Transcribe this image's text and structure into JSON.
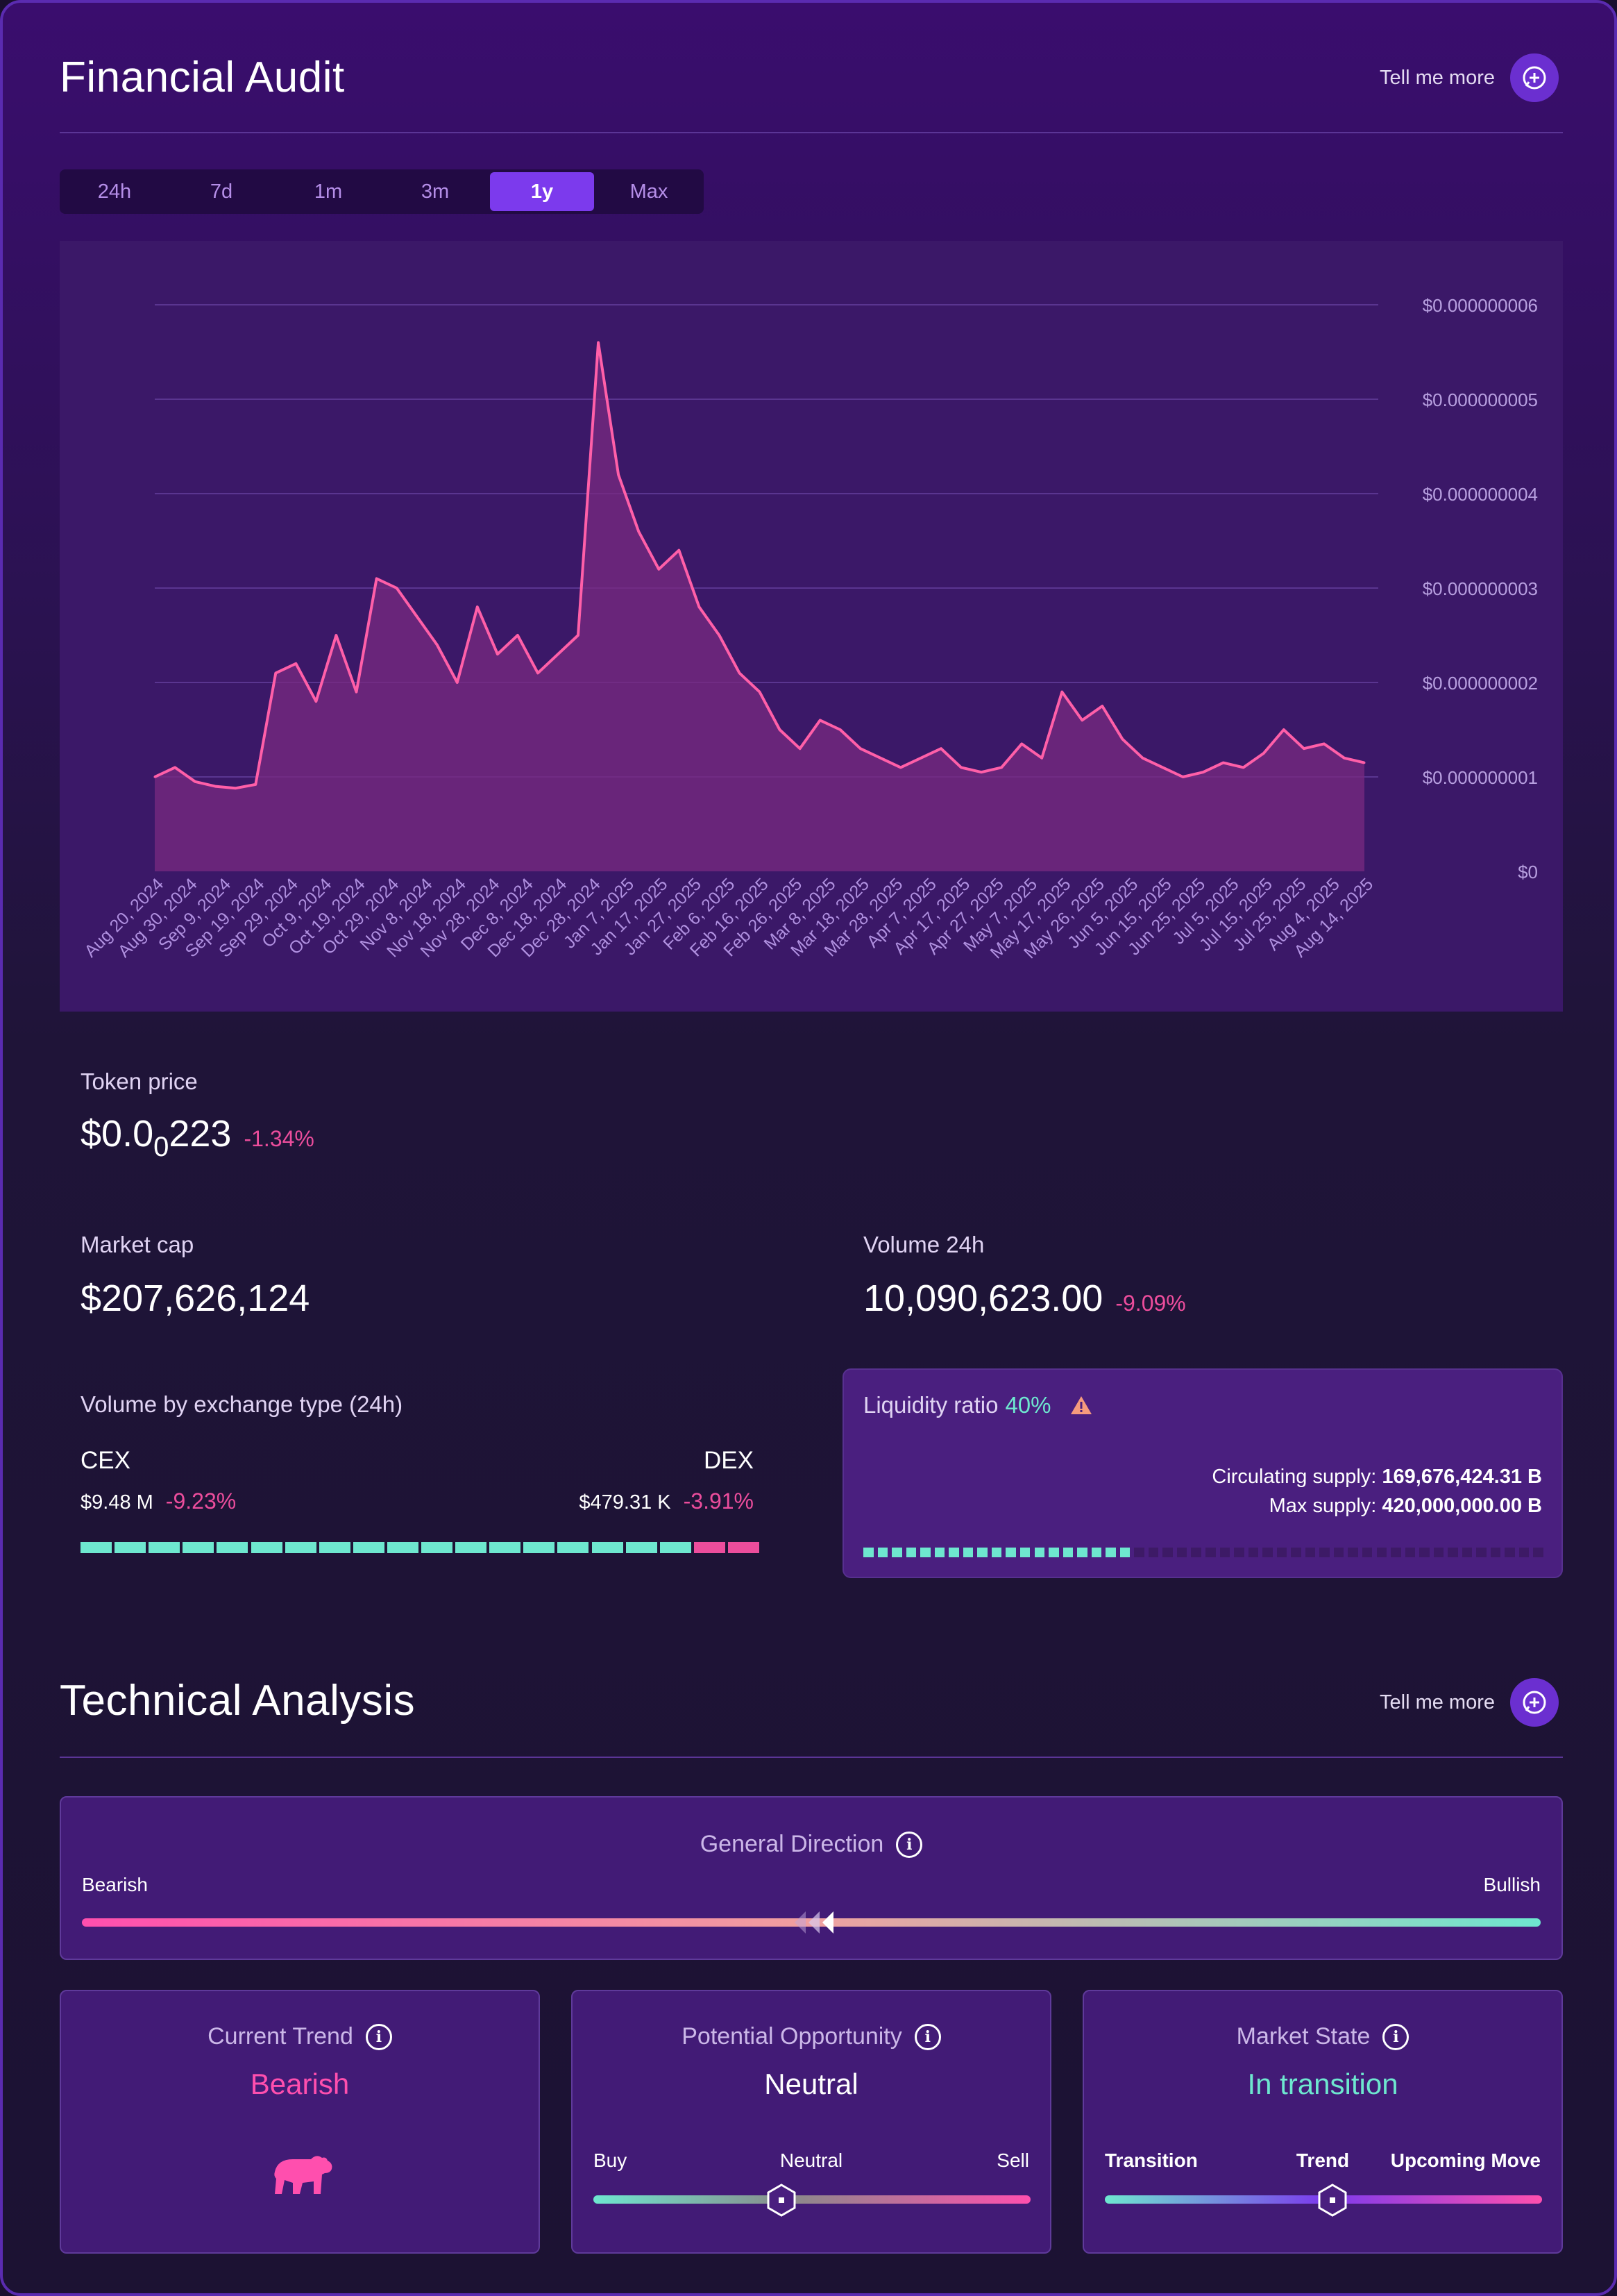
{
  "financial": {
    "title": "Financial Audit",
    "tell_more": "Tell me more",
    "tabs": [
      {
        "label": "24h",
        "active": false
      },
      {
        "label": "7d",
        "active": false
      },
      {
        "label": "1m",
        "active": false
      },
      {
        "label": "3m",
        "active": false
      },
      {
        "label": "1y",
        "active": true
      },
      {
        "label": "Max",
        "active": false
      }
    ]
  },
  "chart_data": {
    "type": "area",
    "series_color": "#ff5fa8",
    "fill_color": "#7a2a80",
    "y_ticks": [
      "$0",
      "$0.000000001",
      "$0.000000002",
      "$0.000000003",
      "$0.000000004",
      "$0.000000005",
      "$0.000000006"
    ],
    "ylim": [
      0,
      6e-09
    ],
    "x_labels": [
      "Aug 20, 2024",
      "Aug 30, 2024",
      "Sep 9, 2024",
      "Sep 19, 2024",
      "Sep 29, 2024",
      "Oct 9, 2024",
      "Oct 19, 2024",
      "Oct 29, 2024",
      "Nov 8, 2024",
      "Nov 18, 2024",
      "Nov 28, 2024",
      "Dec 8, 2024",
      "Dec 18, 2024",
      "Dec 28, 2024",
      "Jan 7, 2025",
      "Jan 17, 2025",
      "Jan 27, 2025",
      "Feb 6, 2025",
      "Feb 16, 2025",
      "Feb 26, 2025",
      "Mar 8, 2025",
      "Mar 18, 2025",
      "Mar 28, 2025",
      "Apr 7, 2025",
      "Apr 17, 2025",
      "Apr 27, 2025",
      "May 7, 2025",
      "May 17, 2025",
      "May 26, 2025",
      "Jun 5, 2025",
      "Jun 15, 2025",
      "Jun 25, 2025",
      "Jul 5, 2025",
      "Jul 15, 2025",
      "Jul 25, 2025",
      "Aug 4, 2025",
      "Aug 14, 2025"
    ],
    "values": [
      1.0,
      1.1,
      0.95,
      0.9,
      0.88,
      0.92,
      2.1,
      2.2,
      1.8,
      2.5,
      1.9,
      3.1,
      3.0,
      2.7,
      2.4,
      2.0,
      2.8,
      2.3,
      2.5,
      2.1,
      2.3,
      2.5,
      5.6,
      4.2,
      3.6,
      3.2,
      3.4,
      2.8,
      2.5,
      2.1,
      1.9,
      1.5,
      1.3,
      1.6,
      1.5,
      1.3,
      1.2,
      1.1,
      1.2,
      1.3,
      1.1,
      1.05,
      1.1,
      1.35,
      1.2,
      1.9,
      1.6,
      1.75,
      1.4,
      1.2,
      1.1,
      1.0,
      1.05,
      1.15,
      1.1,
      1.25,
      1.5,
      1.3,
      1.35,
      1.2,
      1.15
    ]
  },
  "token": {
    "price_label": "Token price",
    "price_prefix": "$0.0",
    "price_sub": "0",
    "price_suffix": "223",
    "price_change": "-1.34%",
    "mcap_label": "Market cap",
    "mcap_value": "$207,626,124",
    "vol_label": "Volume 24h",
    "vol_value": "10,090,623.00",
    "vol_change": "-9.09%"
  },
  "exchange": {
    "title": "Volume by exchange type (24h)",
    "cex_label": "CEX",
    "dex_label": "DEX",
    "cex_value": "$9.48 M",
    "cex_change": "-9.23%",
    "dex_value": "$479.31 K",
    "dex_change": "-3.91%",
    "cex_share": 0.95,
    "cex_color": "#6ee7cf",
    "dex_color": "#ec4d9c"
  },
  "liquidity": {
    "title": "Liquidity ratio",
    "ratio": "40%",
    "ratio_fraction": 0.4,
    "circ_label": "Circulating supply:",
    "circ_value": "169,676,424.31 B",
    "max_label": "Max supply:",
    "max_value": "420,000,000.00 B"
  },
  "technical": {
    "title": "Technical Analysis",
    "tell_more": "Tell me more",
    "direction_title": "General Direction",
    "bearish_label": "Bearish",
    "bullish_label": "Bullish",
    "direction_position": 0.52,
    "trend_title": "Current Trend",
    "trend_value": "Bearish",
    "opportunity_title": "Potential Opportunity",
    "opportunity_value": "Neutral",
    "opp_buy": "Buy",
    "opp_neutral": "Neutral",
    "opp_sell": "Sell",
    "opportunity_position": 0.43,
    "state_title": "Market State",
    "state_value": "In transition",
    "state_transition": "Transition",
    "state_trend": "Trend",
    "state_upcoming": "Upcoming Move",
    "state_position": 0.52
  }
}
